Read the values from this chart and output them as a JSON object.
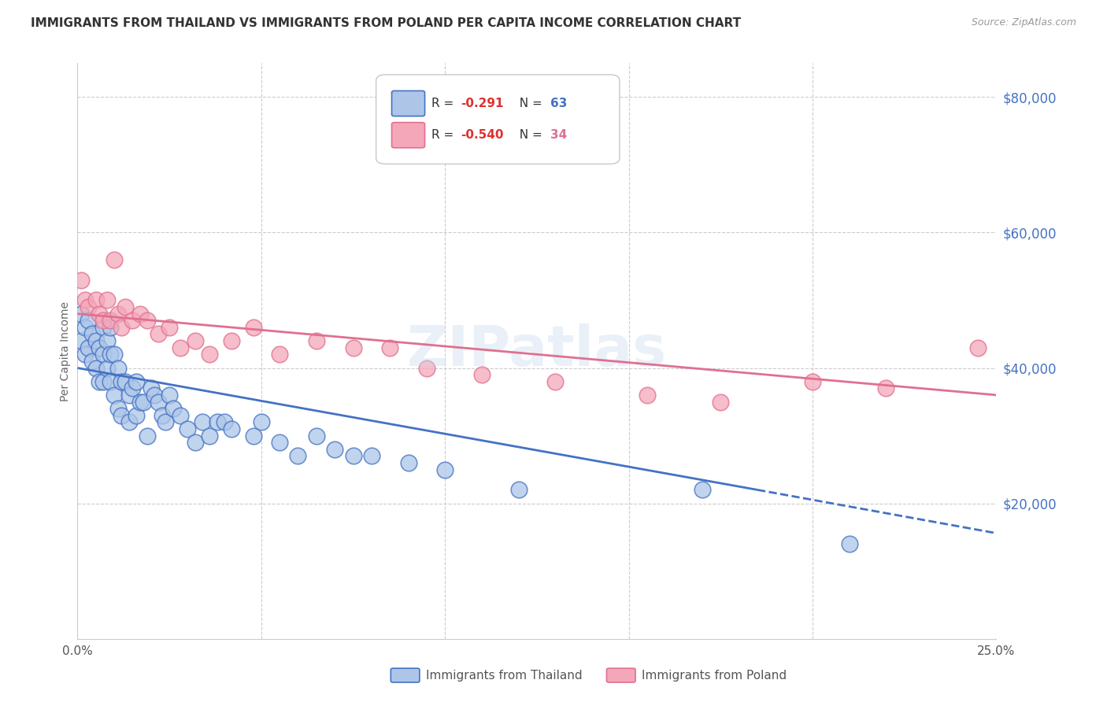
{
  "title": "IMMIGRANTS FROM THAILAND VS IMMIGRANTS FROM POLAND PER CAPITA INCOME CORRELATION CHART",
  "source": "Source: ZipAtlas.com",
  "ylabel": "Per Capita Income",
  "x_min": 0.0,
  "x_max": 0.25,
  "y_min": 0,
  "y_max": 85000,
  "x_ticks": [
    0.0,
    0.05,
    0.1,
    0.15,
    0.2,
    0.25
  ],
  "x_tick_labels": [
    "0.0%",
    "",
    "",
    "",
    "",
    "25.0%"
  ],
  "y_ticks_right": [
    20000,
    40000,
    60000,
    80000
  ],
  "y_tick_labels_right": [
    "$20,000",
    "$40,000",
    "$60,000",
    "$80,000"
  ],
  "legend_val1": "-0.291",
  "legend_nval1": "63",
  "legend_val2": "-0.540",
  "legend_nval2": "34",
  "color_thailand": "#adc6e8",
  "color_thailand_line": "#4472c4",
  "color_poland": "#f4a7b9",
  "color_poland_line": "#e07090",
  "color_right_labels": "#4472c4",
  "watermark": "ZIPatlas",
  "line_thailand_x0": 0.0,
  "line_thailand_y0": 40000,
  "line_thailand_x1": 0.185,
  "line_thailand_y1": 22000,
  "line_thailand_dash_x0": 0.185,
  "line_thailand_dash_y0": 22000,
  "line_thailand_dash_x1": 0.25,
  "line_thailand_dash_y1": 15600,
  "line_poland_x0": 0.0,
  "line_poland_y0": 48000,
  "line_poland_x1": 0.25,
  "line_poland_y1": 36000,
  "thailand_x": [
    0.001,
    0.001,
    0.002,
    0.002,
    0.003,
    0.003,
    0.004,
    0.004,
    0.005,
    0.005,
    0.006,
    0.006,
    0.007,
    0.007,
    0.007,
    0.008,
    0.008,
    0.009,
    0.009,
    0.009,
    0.01,
    0.01,
    0.011,
    0.011,
    0.012,
    0.012,
    0.013,
    0.014,
    0.014,
    0.015,
    0.016,
    0.016,
    0.017,
    0.018,
    0.019,
    0.02,
    0.021,
    0.022,
    0.023,
    0.024,
    0.025,
    0.026,
    0.028,
    0.03,
    0.032,
    0.034,
    0.036,
    0.038,
    0.04,
    0.042,
    0.048,
    0.05,
    0.055,
    0.06,
    0.065,
    0.07,
    0.075,
    0.08,
    0.09,
    0.1,
    0.12,
    0.17,
    0.21
  ],
  "thailand_y": [
    48000,
    44000,
    46000,
    42000,
    47000,
    43000,
    45000,
    41000,
    44000,
    40000,
    43000,
    38000,
    46000,
    42000,
    38000,
    44000,
    40000,
    46000,
    42000,
    38000,
    42000,
    36000,
    40000,
    34000,
    38000,
    33000,
    38000,
    36000,
    32000,
    37000,
    38000,
    33000,
    35000,
    35000,
    30000,
    37000,
    36000,
    35000,
    33000,
    32000,
    36000,
    34000,
    33000,
    31000,
    29000,
    32000,
    30000,
    32000,
    32000,
    31000,
    30000,
    32000,
    29000,
    27000,
    30000,
    28000,
    27000,
    27000,
    26000,
    25000,
    22000,
    22000,
    14000
  ],
  "poland_x": [
    0.001,
    0.002,
    0.003,
    0.005,
    0.006,
    0.007,
    0.008,
    0.009,
    0.01,
    0.011,
    0.012,
    0.013,
    0.015,
    0.017,
    0.019,
    0.022,
    0.025,
    0.028,
    0.032,
    0.036,
    0.042,
    0.048,
    0.055,
    0.065,
    0.075,
    0.085,
    0.095,
    0.11,
    0.13,
    0.155,
    0.175,
    0.2,
    0.22,
    0.245
  ],
  "poland_y": [
    53000,
    50000,
    49000,
    50000,
    48000,
    47000,
    50000,
    47000,
    56000,
    48000,
    46000,
    49000,
    47000,
    48000,
    47000,
    45000,
    46000,
    43000,
    44000,
    42000,
    44000,
    46000,
    42000,
    44000,
    43000,
    43000,
    40000,
    39000,
    38000,
    36000,
    35000,
    38000,
    37000,
    43000
  ]
}
